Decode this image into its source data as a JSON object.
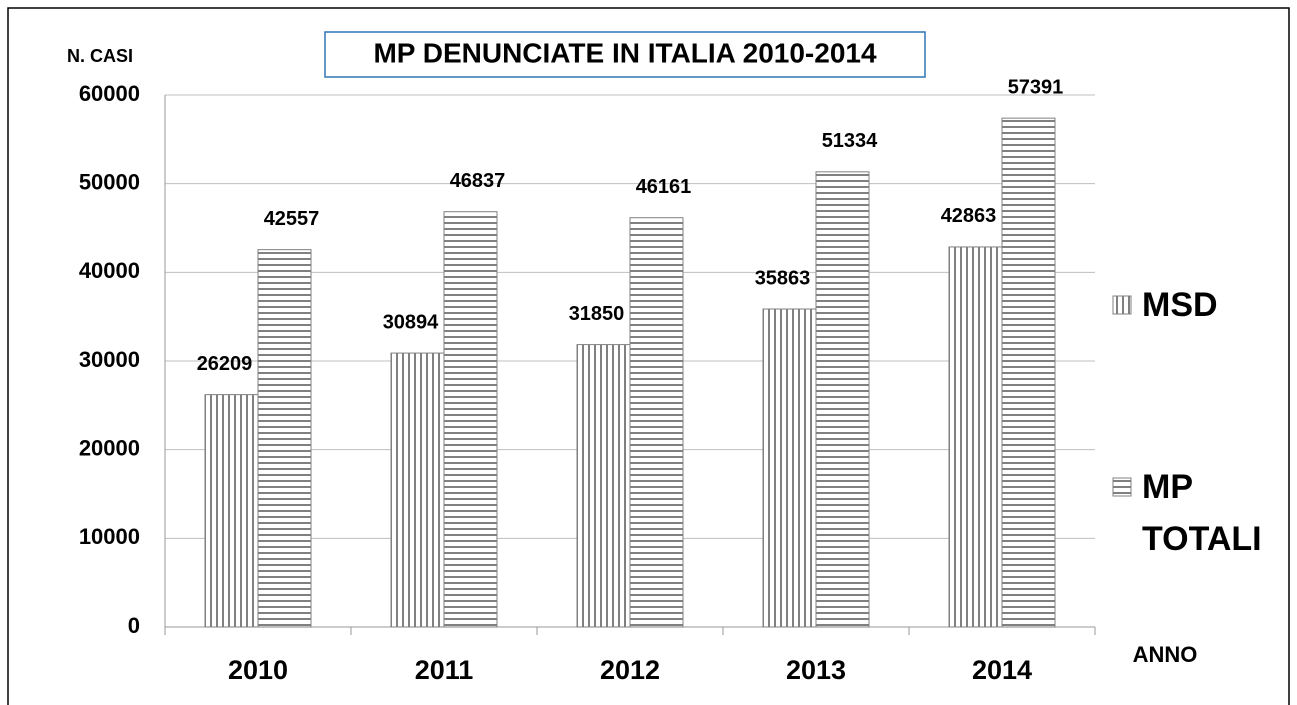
{
  "chart_data": {
    "type": "bar",
    "title": "MP DENUNCIATE IN ITALIA 2010-2014",
    "y_label": "N. CASI",
    "x_label": "ANNO",
    "categories": [
      "2010",
      "2011",
      "2012",
      "2013",
      "2014"
    ],
    "series": [
      {
        "name": "MSD",
        "color": "#808080",
        "pattern": "vertical",
        "values": [
          26209,
          30894,
          31850,
          35863,
          42863
        ]
      },
      {
        "name": "MP TOTALI",
        "color": "#808080",
        "pattern": "horizontal",
        "values": [
          42557,
          46837,
          46161,
          51334,
          57391
        ]
      }
    ],
    "ylim": [
      0,
      60000
    ],
    "yticks": [
      0,
      10000,
      20000,
      30000,
      40000,
      50000,
      60000
    ],
    "grid": true,
    "legend": "right"
  }
}
